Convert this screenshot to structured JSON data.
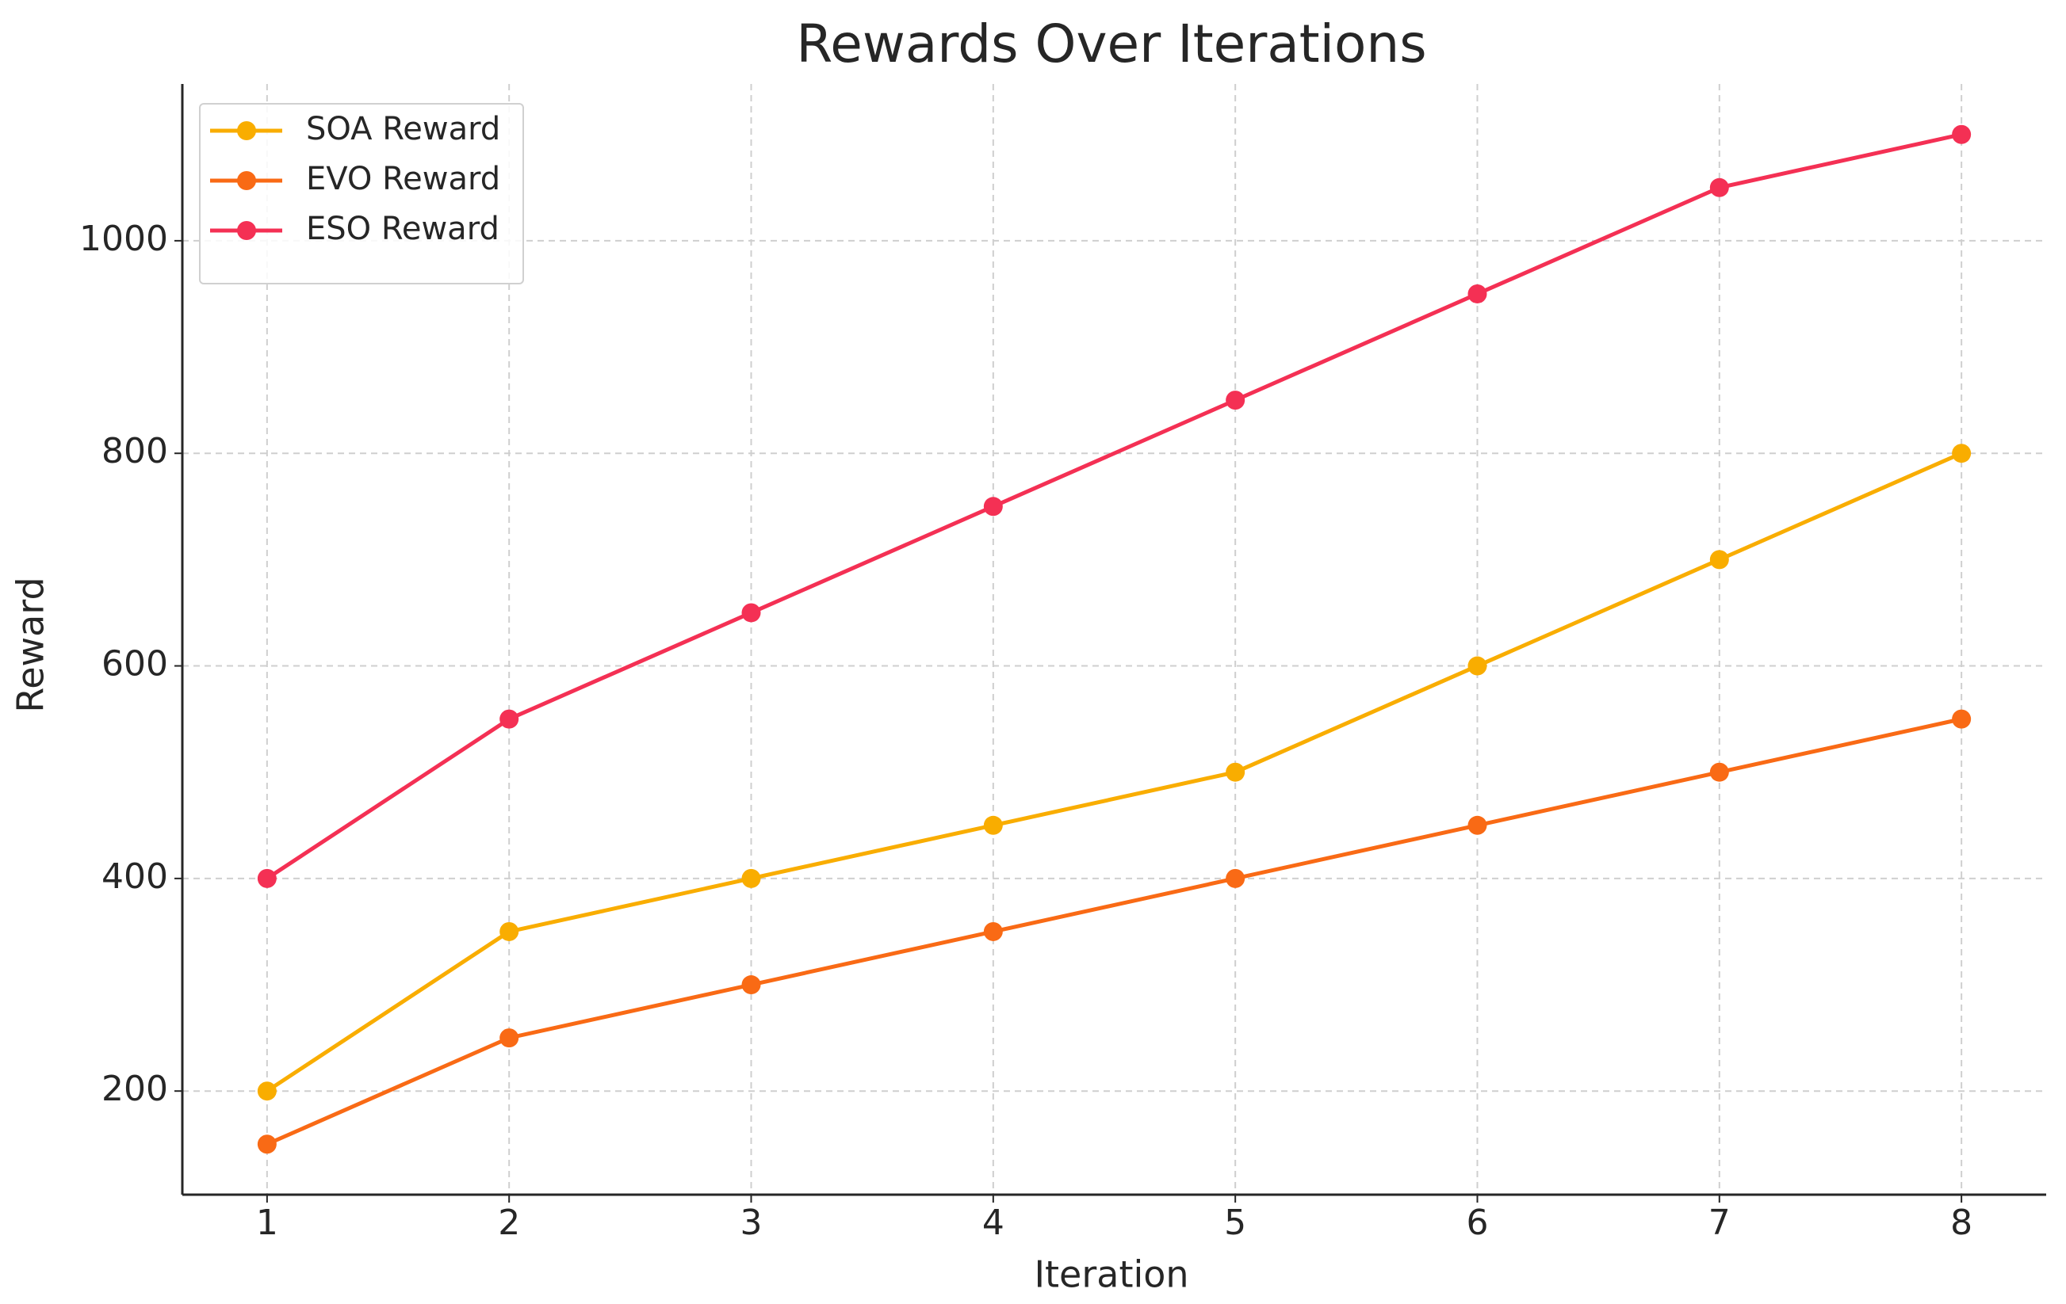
{
  "chart_data": {
    "type": "line",
    "title": "Rewards Over Iterations",
    "x_label": "Iteration",
    "y_label": "Reward",
    "x": [
      1,
      2,
      3,
      4,
      5,
      6,
      7,
      8
    ],
    "series": [
      {
        "name": "SOA Reward",
        "color": "#f9ad00",
        "values": [
          200,
          350,
          400,
          450,
          500,
          600,
          700,
          800
        ]
      },
      {
        "name": "EVO Reward",
        "color": "#f96a15",
        "values": [
          150,
          250,
          300,
          350,
          400,
          450,
          500,
          550
        ]
      },
      {
        "name": "ESO Reward",
        "color": "#f43054",
        "values": [
          400,
          550,
          650,
          750,
          850,
          950,
          1050,
          1100
        ]
      }
    ],
    "xlim": [
      0.65,
      8.35
    ],
    "xticks": [
      1,
      2,
      3,
      4,
      5,
      6,
      7,
      8
    ],
    "ylim": [
      102.5,
      1147.5
    ],
    "yticks": [
      200,
      400,
      600,
      800,
      1000
    ],
    "grid": true,
    "legend": "upper-left"
  }
}
